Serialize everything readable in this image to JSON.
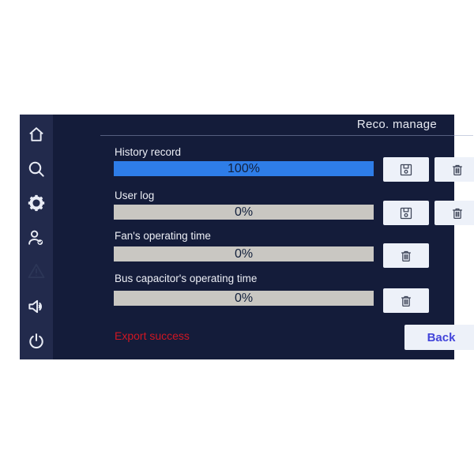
{
  "title": "Reco. manage",
  "colors": {
    "panel_bg": "#141c3a",
    "sidebar_bg": "#222a4c",
    "accent": "#2e7de8",
    "track": "#c9c7c2",
    "button_bg": "#edf1f9",
    "status_red": "#d01622",
    "back_blue": "#4244da"
  },
  "sidebar": {
    "items": [
      {
        "icon": "home-icon",
        "dimmed": false
      },
      {
        "icon": "search-icon",
        "dimmed": false
      },
      {
        "icon": "settings-gear-icon",
        "dimmed": false
      },
      {
        "icon": "user-check-icon",
        "dimmed": false
      },
      {
        "icon": "warning-triangle-icon",
        "dimmed": true
      },
      {
        "icon": "speaker-icon",
        "dimmed": false
      },
      {
        "icon": "power-icon",
        "dimmed": false
      }
    ]
  },
  "rows": [
    {
      "label": "History record",
      "value": 100,
      "percent": "100%",
      "buttons": [
        "save",
        "delete"
      ]
    },
    {
      "label": "User log",
      "value": 0,
      "percent": "0%",
      "buttons": [
        "save",
        "delete"
      ]
    },
    {
      "label": "Fan's operating time",
      "value": 0,
      "percent": "0%",
      "buttons": [
        "delete"
      ]
    },
    {
      "label": "Bus capacitor's operating time",
      "value": 0,
      "percent": "0%",
      "buttons": [
        "delete"
      ]
    }
  ],
  "status": {
    "message": "Export success"
  },
  "back_label": "Back"
}
